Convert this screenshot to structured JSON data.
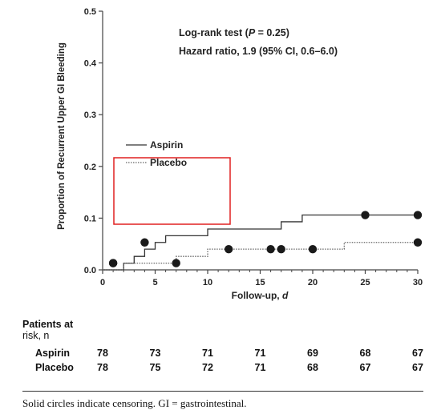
{
  "chart_data": {
    "type": "line",
    "xlabel": "Follow-up, d",
    "ylabel": "Proportion of Recurrent Upper GI Bleeding",
    "xlim": [
      0,
      30
    ],
    "ylim": [
      0,
      0.5
    ],
    "x_ticks": [
      "0",
      "5",
      "10",
      "15",
      "20",
      "25",
      "30"
    ],
    "y_ticks": [
      "0.0",
      "0.1",
      "0.2",
      "0.3",
      "0.4",
      "0.5"
    ],
    "legend_position": "upper-left",
    "annotations": [
      "Log-rank test (P = 0.25)",
      "Hazard ratio, 1.9 (95% CI, 0.6–6.0)"
    ],
    "series": [
      {
        "name": "Aspirin",
        "style": "solid",
        "steps": [
          [
            0,
            0
          ],
          [
            2,
            0
          ],
          [
            2,
            0.013
          ],
          [
            3,
            0.013
          ],
          [
            3,
            0.026
          ],
          [
            4,
            0.026
          ],
          [
            4,
            0.04
          ],
          [
            5,
            0.04
          ],
          [
            5,
            0.053
          ],
          [
            6,
            0.053
          ],
          [
            6,
            0.066
          ],
          [
            10,
            0.066
          ],
          [
            10,
            0.079
          ],
          [
            17,
            0.079
          ],
          [
            17,
            0.093
          ],
          [
            19,
            0.093
          ],
          [
            19,
            0.106
          ],
          [
            30,
            0.106
          ]
        ],
        "censored": [
          [
            1,
            0.013
          ],
          [
            4,
            0.053
          ],
          [
            25,
            0.106
          ],
          [
            30,
            0.106
          ]
        ]
      },
      {
        "name": "Placebo",
        "style": "dotted",
        "steps": [
          [
            0,
            0
          ],
          [
            2,
            0
          ],
          [
            2,
            0.013
          ],
          [
            7,
            0.013
          ],
          [
            7,
            0.026
          ],
          [
            10,
            0.026
          ],
          [
            10,
            0.04
          ],
          [
            23,
            0.04
          ],
          [
            23,
            0.053
          ],
          [
            30,
            0.053
          ]
        ],
        "censored": [
          [
            1,
            0.013
          ],
          [
            7,
            0.013
          ],
          [
            12,
            0.04
          ],
          [
            16,
            0.04
          ],
          [
            17,
            0.04
          ],
          [
            20,
            0.04
          ],
          [
            30,
            0.053
          ]
        ]
      }
    ],
    "risk_table": {
      "title_line1": "Patients at",
      "title_line2": "risk, n",
      "columns": [
        "0",
        "5",
        "10",
        "15",
        "20",
        "25",
        "30"
      ],
      "rows": [
        {
          "label": "Aspirin",
          "values": [
            "78",
            "73",
            "71",
            "71",
            "69",
            "68",
            "67"
          ]
        },
        {
          "label": "Placebo",
          "values": [
            "78",
            "75",
            "72",
            "71",
            "68",
            "67",
            "67"
          ]
        }
      ]
    },
    "footnote": "Solid circles indicate censoring. GI = gastrointestinal.",
    "colors": {
      "highlight_box": "#e02020",
      "lines": "#444444",
      "markers": "#1a1a1a"
    }
  }
}
